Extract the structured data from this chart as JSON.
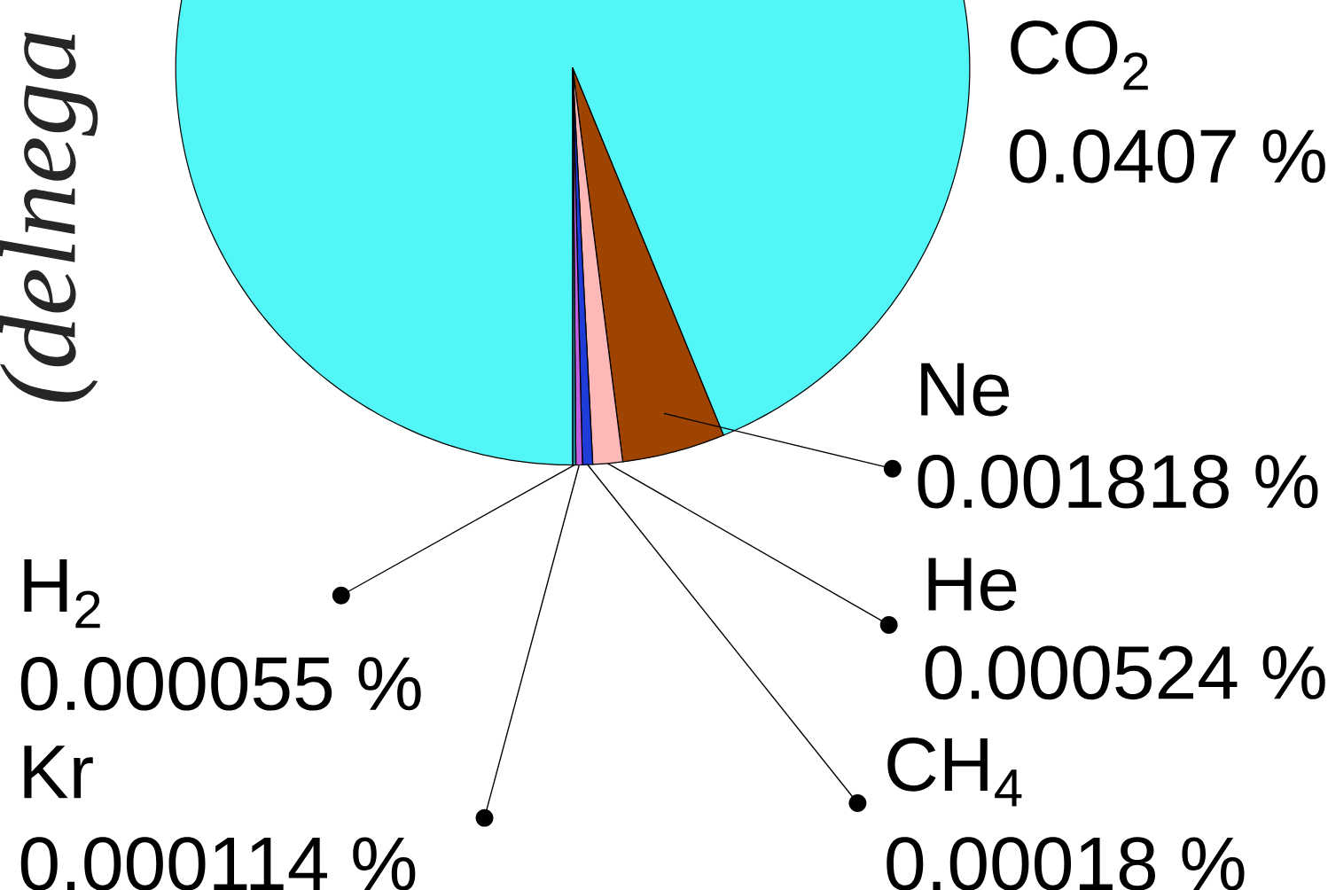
{
  "chart_data": {
    "type": "pie",
    "ylabel": "(delnega",
    "categories": [
      "CO$_{2}$",
      "Ne",
      "He",
      "CH$_{4}$",
      "Kr",
      "H$_{2}$"
    ],
    "values": [
      0.0407,
      0.001818,
      0.000524,
      0.00018,
      0.000114,
      5.5e-05
    ],
    "value_labels": [
      "0.0407 %",
      "0.001818 %",
      "0.000524 %",
      "0.00018 %",
      "0.000114 %",
      "0.000055 %"
    ],
    "colors": [
      "#52f6f6",
      "#9e4400",
      "#ffb8b8",
      "#1f3bd8",
      "#c060e0",
      "#208c9c"
    ]
  }
}
